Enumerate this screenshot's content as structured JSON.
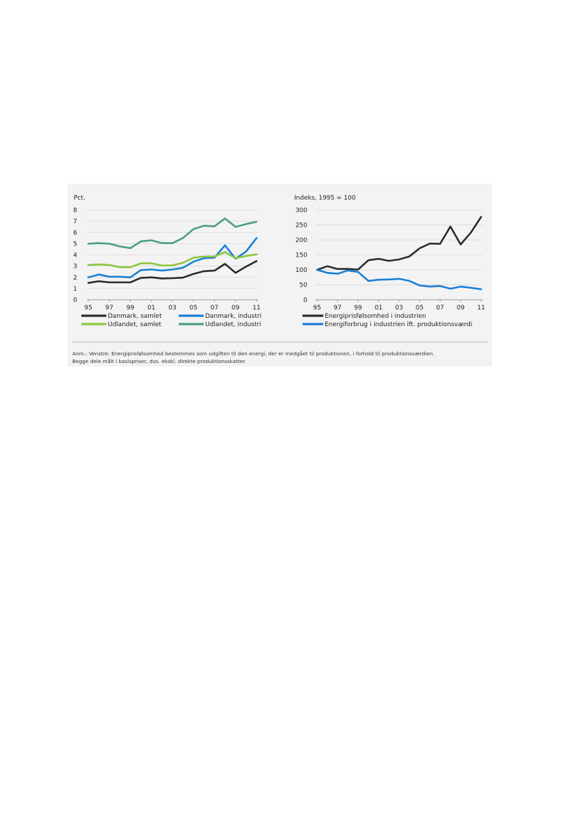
{
  "chart_data": [
    {
      "type": "line",
      "unit_label": "Pct.",
      "x": [
        "95",
        "96",
        "97",
        "98",
        "99",
        "00",
        "01",
        "02",
        "03",
        "04",
        "05",
        "06",
        "07",
        "08",
        "09",
        "10",
        "11"
      ],
      "xticks": [
        "95",
        "97",
        "99",
        "01",
        "03",
        "05",
        "07",
        "09",
        "11"
      ],
      "ylim": [
        0,
        8
      ],
      "yticks": [
        "0",
        "1",
        "2",
        "3",
        "4",
        "5",
        "6",
        "7",
        "8"
      ],
      "grid": true,
      "legend_position": "bottom",
      "series": [
        {
          "name": "Danmark, samlet",
          "color": "#2b2b2b",
          "values": [
            1.5,
            1.65,
            1.55,
            1.55,
            1.55,
            1.95,
            2.0,
            1.9,
            1.92,
            1.97,
            2.3,
            2.55,
            2.6,
            3.2,
            2.4,
            2.95,
            3.45
          ]
        },
        {
          "name": "Danmark, industri",
          "color": "#1a7fd4",
          "values": [
            2.0,
            2.25,
            2.05,
            2.05,
            2.0,
            2.65,
            2.7,
            2.6,
            2.7,
            2.85,
            3.4,
            3.7,
            3.75,
            4.85,
            3.65,
            4.3,
            5.5
          ]
        },
        {
          "name": "Udlandet, samlet",
          "color": "#8cc63f",
          "values": [
            3.1,
            3.15,
            3.1,
            2.9,
            2.9,
            3.25,
            3.25,
            3.05,
            3.07,
            3.3,
            3.75,
            3.85,
            3.85,
            4.25,
            3.7,
            3.9,
            4.05
          ]
        },
        {
          "name": "Udlandet, industri",
          "color": "#4a9e84",
          "values": [
            5.0,
            5.05,
            5.0,
            4.75,
            4.6,
            5.2,
            5.3,
            5.05,
            5.05,
            5.5,
            6.3,
            6.6,
            6.55,
            7.25,
            6.5,
            6.75,
            6.95
          ]
        }
      ]
    },
    {
      "type": "line",
      "unit_label": "Indeks, 1995 = 100",
      "x": [
        "95",
        "96",
        "97",
        "98",
        "99",
        "00",
        "01",
        "02",
        "03",
        "04",
        "05",
        "06",
        "07",
        "08",
        "09",
        "10",
        "11"
      ],
      "xticks": [
        "95",
        "97",
        "99",
        "01",
        "03",
        "05",
        "07",
        "09",
        "11"
      ],
      "ylim": [
        0,
        300
      ],
      "yticks": [
        "0",
        "50",
        "100",
        "150",
        "200",
        "250",
        "300"
      ],
      "grid": true,
      "legend_position": "bottom",
      "series": [
        {
          "name": "Energiprisfølsomhed i industrien",
          "color": "#2b2b2b",
          "values": [
            100,
            112,
            103,
            103,
            101,
            132,
            137,
            130,
            135,
            145,
            172,
            188,
            187,
            245,
            185,
            225,
            277
          ]
        },
        {
          "name": "Energiforbrug i industrien ift. produktionsværdi",
          "color": "#1a7fd4",
          "values": [
            100,
            90,
            87,
            98,
            93,
            63,
            67,
            68,
            70,
            63,
            48,
            44,
            46,
            37,
            44,
            40,
            35
          ]
        }
      ]
    }
  ],
  "note": {
    "line1": "Anm.:  Venstre: Energiprisfølsomhed bestemmes som udgiften til den energi, der er medgået til produktionen, i forhold til produktionsværdien.",
    "line2": "Begge dele målt i basispriser, dvs. ekskl. direkte produktionsskatter."
  },
  "colors": {
    "panel_background": "#f3f3f3",
    "gridline": "#d4d4d4",
    "axis": "#9a9a9a"
  }
}
